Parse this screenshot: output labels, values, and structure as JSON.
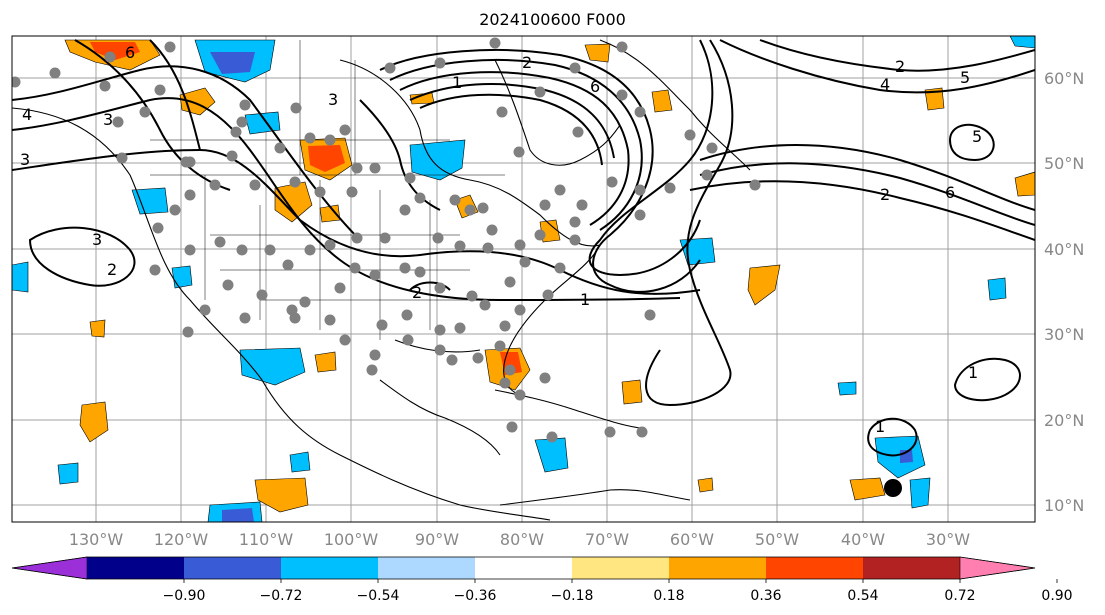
{
  "title": "2024100600 F000",
  "lon_labels": [
    "130°W",
    "120°W",
    "110°W",
    "100°W",
    "90°W",
    "80°W",
    "70°W",
    "60°W",
    "50°W",
    "40°W",
    "30°W"
  ],
  "lat_labels": [
    "60°N",
    "50°N",
    "40°N",
    "30°N",
    "20°N",
    "10°N"
  ],
  "colorbar": {
    "tick_labels": [
      "−0.90",
      "−0.72",
      "−0.54",
      "−0.36",
      "−0.18",
      "0.18",
      "0.36",
      "0.54",
      "0.72",
      "0.90"
    ],
    "colors": [
      "#9b30d9",
      "#00008b",
      "#3a5bd6",
      "#00bfff",
      "#add8ff",
      "#ffffff",
      "#ffe680",
      "#ffa500",
      "#ff4500",
      "#b22222",
      "#ff80b0"
    ]
  },
  "contour_labels": [
    "1",
    "2",
    "3",
    "4",
    "5",
    "6"
  ],
  "colors": {
    "positive_shade": "#ffa500",
    "positive_strong": "#ff4500",
    "negative_shade": "#00bfff",
    "negative_strong": "#3a5bd6",
    "station_dot": "#808080",
    "gridline": "#a0a0a0"
  }
}
